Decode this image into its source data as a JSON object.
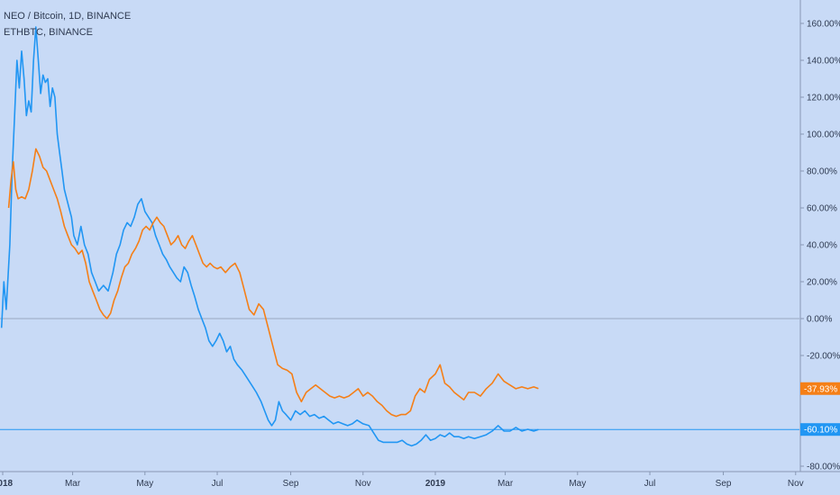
{
  "legend": {
    "main": "NEO / Bitcoin, 1D, BINANCE",
    "compare": "ETHBTC, BINANCE"
  },
  "colors": {
    "background": "#c8daf6",
    "neo": "#2196f3",
    "eth": "#f57f17",
    "axis_text": "#2f3b52",
    "zero_line": "#9aa8c0"
  },
  "chart_data": {
    "type": "line",
    "y_unit": "percent",
    "ylim": [
      -80,
      160
    ],
    "y_ticks": [
      "160.00%",
      "140.00%",
      "120.00%",
      "100.00%",
      "80.00%",
      "60.00%",
      "40.00%",
      "20.00%",
      "0.00%",
      "-20.00%",
      "-80.00%"
    ],
    "y_tick_values": [
      160,
      140,
      120,
      100,
      80,
      60,
      40,
      20,
      0,
      -20,
      -80
    ],
    "x_ticks": [
      {
        "label": "2018",
        "date": "2018-01-01",
        "bold": true
      },
      {
        "label": "Mar",
        "date": "2018-03-01",
        "bold": false
      },
      {
        "label": "May",
        "date": "2018-05-01",
        "bold": false
      },
      {
        "label": "Jul",
        "date": "2018-07-01",
        "bold": false
      },
      {
        "label": "Sep",
        "date": "2018-09-01",
        "bold": false
      },
      {
        "label": "Nov",
        "date": "2018-11-01",
        "bold": false
      },
      {
        "label": "2019",
        "date": "2019-01-01",
        "bold": true
      },
      {
        "label": "Mar",
        "date": "2019-03-01",
        "bold": false
      },
      {
        "label": "May",
        "date": "2019-05-01",
        "bold": false
      },
      {
        "label": "Jul",
        "date": "2019-07-01",
        "bold": false
      },
      {
        "label": "Sep",
        "date": "2019-09-01",
        "bold": false
      },
      {
        "label": "Nov",
        "date": "2019-11-01",
        "bold": false
      }
    ],
    "series": [
      {
        "name": "NEO / Bitcoin, 1D, BINANCE",
        "color": "#2196f3",
        "last_label": "-60.10%",
        "last_value": -60.1,
        "points": [
          [
            "2017-12-31",
            -5
          ],
          [
            "2018-01-02",
            20
          ],
          [
            "2018-01-04",
            5
          ],
          [
            "2018-01-07",
            40
          ],
          [
            "2018-01-09",
            80
          ],
          [
            "2018-01-11",
            110
          ],
          [
            "2018-01-13",
            140
          ],
          [
            "2018-01-15",
            125
          ],
          [
            "2018-01-17",
            145
          ],
          [
            "2018-01-19",
            130
          ],
          [
            "2018-01-21",
            110
          ],
          [
            "2018-01-23",
            118
          ],
          [
            "2018-01-25",
            112
          ],
          [
            "2018-01-27",
            140
          ],
          [
            "2018-01-29",
            158
          ],
          [
            "2018-01-31",
            140
          ],
          [
            "2018-02-02",
            122
          ],
          [
            "2018-02-04",
            132
          ],
          [
            "2018-02-06",
            128
          ],
          [
            "2018-02-08",
            130
          ],
          [
            "2018-02-10",
            115
          ],
          [
            "2018-02-12",
            125
          ],
          [
            "2018-02-14",
            120
          ],
          [
            "2018-02-16",
            100
          ],
          [
            "2018-02-18",
            90
          ],
          [
            "2018-02-20",
            80
          ],
          [
            "2018-02-22",
            70
          ],
          [
            "2018-02-24",
            65
          ],
          [
            "2018-02-26",
            60
          ],
          [
            "2018-02-28",
            55
          ],
          [
            "2018-03-02",
            45
          ],
          [
            "2018-03-05",
            40
          ],
          [
            "2018-03-08",
            50
          ],
          [
            "2018-03-11",
            40
          ],
          [
            "2018-03-14",
            35
          ],
          [
            "2018-03-17",
            25
          ],
          [
            "2018-03-20",
            20
          ],
          [
            "2018-03-23",
            15
          ],
          [
            "2018-03-27",
            18
          ],
          [
            "2018-03-31",
            15
          ],
          [
            "2018-04-04",
            25
          ],
          [
            "2018-04-07",
            35
          ],
          [
            "2018-04-10",
            40
          ],
          [
            "2018-04-13",
            48
          ],
          [
            "2018-04-16",
            52
          ],
          [
            "2018-04-19",
            50
          ],
          [
            "2018-04-22",
            55
          ],
          [
            "2018-04-25",
            62
          ],
          [
            "2018-04-28",
            65
          ],
          [
            "2018-05-01",
            58
          ],
          [
            "2018-05-04",
            55
          ],
          [
            "2018-05-07",
            52
          ],
          [
            "2018-05-10",
            45
          ],
          [
            "2018-05-13",
            40
          ],
          [
            "2018-05-16",
            35
          ],
          [
            "2018-05-19",
            32
          ],
          [
            "2018-05-22",
            28
          ],
          [
            "2018-05-25",
            25
          ],
          [
            "2018-05-28",
            22
          ],
          [
            "2018-05-31",
            20
          ],
          [
            "2018-06-03",
            28
          ],
          [
            "2018-06-06",
            25
          ],
          [
            "2018-06-09",
            18
          ],
          [
            "2018-06-12",
            12
          ],
          [
            "2018-06-15",
            5
          ],
          [
            "2018-06-18",
            0
          ],
          [
            "2018-06-21",
            -5
          ],
          [
            "2018-06-24",
            -12
          ],
          [
            "2018-06-27",
            -15
          ],
          [
            "2018-06-30",
            -12
          ],
          [
            "2018-07-03",
            -8
          ],
          [
            "2018-07-06",
            -12
          ],
          [
            "2018-07-09",
            -18
          ],
          [
            "2018-07-12",
            -15
          ],
          [
            "2018-07-15",
            -22
          ],
          [
            "2018-07-18",
            -25
          ],
          [
            "2018-07-22",
            -28
          ],
          [
            "2018-07-26",
            -32
          ],
          [
            "2018-07-30",
            -36
          ],
          [
            "2018-08-03",
            -40
          ],
          [
            "2018-08-07",
            -45
          ],
          [
            "2018-08-10",
            -50
          ],
          [
            "2018-08-13",
            -55
          ],
          [
            "2018-08-16",
            -58
          ],
          [
            "2018-08-19",
            -55
          ],
          [
            "2018-08-22",
            -45
          ],
          [
            "2018-08-25",
            -50
          ],
          [
            "2018-08-28",
            -52
          ],
          [
            "2018-09-01",
            -55
          ],
          [
            "2018-09-05",
            -50
          ],
          [
            "2018-09-09",
            -52
          ],
          [
            "2018-09-13",
            -50
          ],
          [
            "2018-09-17",
            -53
          ],
          [
            "2018-09-21",
            -52
          ],
          [
            "2018-09-25",
            -54
          ],
          [
            "2018-09-29",
            -53
          ],
          [
            "2018-10-03",
            -55
          ],
          [
            "2018-10-07",
            -57
          ],
          [
            "2018-10-11",
            -56
          ],
          [
            "2018-10-15",
            -57
          ],
          [
            "2018-10-19",
            -58
          ],
          [
            "2018-10-23",
            -57
          ],
          [
            "2018-10-27",
            -55
          ],
          [
            "2018-11-01",
            -57
          ],
          [
            "2018-11-06",
            -58
          ],
          [
            "2018-11-10",
            -62
          ],
          [
            "2018-11-14",
            -66
          ],
          [
            "2018-11-18",
            -67
          ],
          [
            "2018-11-22",
            -67
          ],
          [
            "2018-11-26",
            -67
          ],
          [
            "2018-11-30",
            -67
          ],
          [
            "2018-12-04",
            -66
          ],
          [
            "2018-12-08",
            -68
          ],
          [
            "2018-12-12",
            -69
          ],
          [
            "2018-12-16",
            -68
          ],
          [
            "2018-12-20",
            -66
          ],
          [
            "2018-12-24",
            -63
          ],
          [
            "2018-12-28",
            -66
          ],
          [
            "2019-01-01",
            -65
          ],
          [
            "2019-01-05",
            -63
          ],
          [
            "2019-01-09",
            -64
          ],
          [
            "2019-01-13",
            -62
          ],
          [
            "2019-01-17",
            -64
          ],
          [
            "2019-01-21",
            -64
          ],
          [
            "2019-01-25",
            -65
          ],
          [
            "2019-01-29",
            -64
          ],
          [
            "2019-02-03",
            -65
          ],
          [
            "2019-02-08",
            -64
          ],
          [
            "2019-02-13",
            -63
          ],
          [
            "2019-02-18",
            -61
          ],
          [
            "2019-02-23",
            -58
          ],
          [
            "2019-02-28",
            -61
          ],
          [
            "2019-03-05",
            -61
          ],
          [
            "2019-03-10",
            -59
          ],
          [
            "2019-03-15",
            -61
          ],
          [
            "2019-03-20",
            -60
          ],
          [
            "2019-03-25",
            -61
          ],
          [
            "2019-03-29",
            -60.1
          ]
        ]
      },
      {
        "name": "ETHBTC, BINANCE",
        "color": "#f57f17",
        "last_label": "-37.93%",
        "last_value": -37.93,
        "points": [
          [
            "2018-01-06",
            60
          ],
          [
            "2018-01-08",
            75
          ],
          [
            "2018-01-10",
            85
          ],
          [
            "2018-01-12",
            70
          ],
          [
            "2018-01-14",
            65
          ],
          [
            "2018-01-17",
            66
          ],
          [
            "2018-01-20",
            65
          ],
          [
            "2018-01-23",
            70
          ],
          [
            "2018-01-26",
            80
          ],
          [
            "2018-01-29",
            92
          ],
          [
            "2018-02-01",
            88
          ],
          [
            "2018-02-04",
            82
          ],
          [
            "2018-02-07",
            80
          ],
          [
            "2018-02-10",
            75
          ],
          [
            "2018-02-13",
            70
          ],
          [
            "2018-02-16",
            65
          ],
          [
            "2018-02-19",
            58
          ],
          [
            "2018-02-22",
            50
          ],
          [
            "2018-02-25",
            45
          ],
          [
            "2018-02-28",
            40
          ],
          [
            "2018-03-03",
            38
          ],
          [
            "2018-03-06",
            35
          ],
          [
            "2018-03-09",
            37
          ],
          [
            "2018-03-12",
            30
          ],
          [
            "2018-03-15",
            20
          ],
          [
            "2018-03-18",
            15
          ],
          [
            "2018-03-21",
            10
          ],
          [
            "2018-03-24",
            5
          ],
          [
            "2018-03-27",
            2
          ],
          [
            "2018-03-30",
            0
          ],
          [
            "2018-04-02",
            3
          ],
          [
            "2018-04-05",
            10
          ],
          [
            "2018-04-08",
            15
          ],
          [
            "2018-04-11",
            22
          ],
          [
            "2018-04-14",
            28
          ],
          [
            "2018-04-17",
            30
          ],
          [
            "2018-04-20",
            35
          ],
          [
            "2018-04-23",
            38
          ],
          [
            "2018-04-26",
            42
          ],
          [
            "2018-04-29",
            48
          ],
          [
            "2018-05-02",
            50
          ],
          [
            "2018-05-05",
            48
          ],
          [
            "2018-05-08",
            52
          ],
          [
            "2018-05-11",
            55
          ],
          [
            "2018-05-14",
            52
          ],
          [
            "2018-05-17",
            50
          ],
          [
            "2018-05-20",
            45
          ],
          [
            "2018-05-23",
            40
          ],
          [
            "2018-05-26",
            42
          ],
          [
            "2018-05-29",
            45
          ],
          [
            "2018-06-01",
            40
          ],
          [
            "2018-06-04",
            38
          ],
          [
            "2018-06-07",
            42
          ],
          [
            "2018-06-10",
            45
          ],
          [
            "2018-06-13",
            40
          ],
          [
            "2018-06-16",
            35
          ],
          [
            "2018-06-19",
            30
          ],
          [
            "2018-06-22",
            28
          ],
          [
            "2018-06-25",
            30
          ],
          [
            "2018-06-28",
            28
          ],
          [
            "2018-07-01",
            27
          ],
          [
            "2018-07-04",
            28
          ],
          [
            "2018-07-08",
            25
          ],
          [
            "2018-07-12",
            28
          ],
          [
            "2018-07-16",
            30
          ],
          [
            "2018-07-20",
            25
          ],
          [
            "2018-07-24",
            15
          ],
          [
            "2018-07-28",
            5
          ],
          [
            "2018-08-01",
            2
          ],
          [
            "2018-08-05",
            8
          ],
          [
            "2018-08-09",
            5
          ],
          [
            "2018-08-13",
            -5
          ],
          [
            "2018-08-17",
            -15
          ],
          [
            "2018-08-21",
            -25
          ],
          [
            "2018-08-25",
            -27
          ],
          [
            "2018-08-29",
            -28
          ],
          [
            "2018-09-02",
            -30
          ],
          [
            "2018-09-06",
            -40
          ],
          [
            "2018-09-10",
            -45
          ],
          [
            "2018-09-14",
            -40
          ],
          [
            "2018-09-18",
            -38
          ],
          [
            "2018-09-22",
            -36
          ],
          [
            "2018-09-26",
            -38
          ],
          [
            "2018-09-30",
            -40
          ],
          [
            "2018-10-04",
            -42
          ],
          [
            "2018-10-08",
            -43
          ],
          [
            "2018-10-12",
            -42
          ],
          [
            "2018-10-16",
            -43
          ],
          [
            "2018-10-20",
            -42
          ],
          [
            "2018-10-24",
            -40
          ],
          [
            "2018-10-28",
            -38
          ],
          [
            "2018-11-01",
            -42
          ],
          [
            "2018-11-05",
            -40
          ],
          [
            "2018-11-09",
            -42
          ],
          [
            "2018-11-13",
            -45
          ],
          [
            "2018-11-17",
            -47
          ],
          [
            "2018-11-21",
            -50
          ],
          [
            "2018-11-25",
            -52
          ],
          [
            "2018-11-29",
            -53
          ],
          [
            "2018-12-03",
            -52
          ],
          [
            "2018-12-07",
            -52
          ],
          [
            "2018-12-11",
            -50
          ],
          [
            "2018-12-15",
            -42
          ],
          [
            "2018-12-19",
            -38
          ],
          [
            "2018-12-23",
            -40
          ],
          [
            "2018-12-27",
            -33
          ],
          [
            "2019-01-01",
            -30
          ],
          [
            "2019-01-05",
            -25
          ],
          [
            "2019-01-09",
            -35
          ],
          [
            "2019-01-13",
            -37
          ],
          [
            "2019-01-17",
            -40
          ],
          [
            "2019-01-21",
            -42
          ],
          [
            "2019-01-25",
            -44
          ],
          [
            "2019-01-29",
            -40
          ],
          [
            "2019-02-03",
            -40
          ],
          [
            "2019-02-08",
            -42
          ],
          [
            "2019-02-13",
            -38
          ],
          [
            "2019-02-18",
            -35
          ],
          [
            "2019-02-23",
            -30
          ],
          [
            "2019-02-28",
            -34
          ],
          [
            "2019-03-05",
            -36
          ],
          [
            "2019-03-10",
            -38
          ],
          [
            "2019-03-15",
            -37
          ],
          [
            "2019-03-20",
            -38
          ],
          [
            "2019-03-25",
            -37
          ],
          [
            "2019-03-29",
            -37.93
          ]
        ]
      }
    ]
  }
}
